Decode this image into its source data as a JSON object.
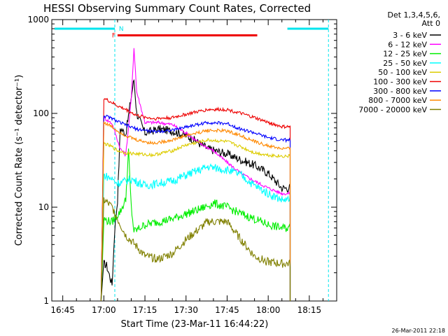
{
  "chart_data": {
    "type": "line",
    "title": "HESSI Observing Summary Count Rates, Corrected",
    "xlabel": "Start Time (23-Mar-11 16:44:22)",
    "ylabel": "Corrected Count Rate (s⁻¹ detector⁻¹)",
    "y_scale": "log",
    "xlim": [
      "16:41",
      "18:25"
    ],
    "ylim": [
      1,
      1000
    ],
    "x_ticks": [
      "16:45",
      "17:00",
      "17:15",
      "17:30",
      "17:45",
      "18:00",
      "18:15"
    ],
    "y_ticks": [
      "1",
      "10",
      "100",
      "1000"
    ],
    "grid": false,
    "legend_header": [
      "Det 1,3,4,5,6,",
      "Att 0"
    ],
    "legend_position": "right",
    "stamp": "26-Mar-2011 22:18",
    "flag_bars": [
      {
        "label": "",
        "color": "#00e5ee",
        "start": "16:42",
        "end": "17:04",
        "level": 800
      },
      {
        "label": "",
        "color": "#00e5ee",
        "start": "18:07",
        "end": "18:22",
        "level": 800
      },
      {
        "label": "F",
        "color": "#ee0000",
        "start": "17:05",
        "end": "17:56",
        "level": 680
      }
    ],
    "flag_labels": [
      {
        "text": "N",
        "color": "#00e5ee",
        "time": "17:05"
      }
    ],
    "flag_markers": [
      {
        "color": "#00e5ee",
        "time": "17:04"
      },
      {
        "color": "#00e5ee",
        "time": "18:22"
      }
    ],
    "data_start": "16:59",
    "data_end": "18:08",
    "series": [
      {
        "name": "3 - 6 keV",
        "color": "#000000",
        "points": [
          [
            "17:00",
            2.5
          ],
          [
            "17:01",
            2.4
          ],
          [
            "17:03",
            1.5
          ],
          [
            "17:04",
            6
          ],
          [
            "17:05",
            12
          ],
          [
            "17:06",
            70
          ],
          [
            "17:08",
            60
          ],
          [
            "17:10",
            150
          ],
          [
            "17:11",
            230
          ],
          [
            "17:12",
            100
          ],
          [
            "17:15",
            62
          ],
          [
            "17:20",
            68
          ],
          [
            "17:25",
            65
          ],
          [
            "17:30",
            58
          ],
          [
            "17:33",
            52
          ],
          [
            "17:38",
            42
          ],
          [
            "17:45",
            37
          ],
          [
            "17:50",
            32
          ],
          [
            "17:55",
            28
          ],
          [
            "18:00",
            23
          ],
          [
            "18:05",
            16
          ]
        ]
      },
      {
        "name": "6 - 12 keV",
        "color": "#ff00ff",
        "points": [
          [
            "17:00",
            90
          ],
          [
            "17:03",
            78
          ],
          [
            "17:06",
            42
          ],
          [
            "17:08",
            36
          ],
          [
            "17:10",
            140
          ],
          [
            "17:11",
            500
          ],
          [
            "17:12",
            170
          ],
          [
            "17:15",
            80
          ],
          [
            "17:20",
            80
          ],
          [
            "17:25",
            76
          ],
          [
            "17:30",
            62
          ],
          [
            "17:35",
            48
          ],
          [
            "17:40",
            40
          ],
          [
            "17:45",
            30
          ],
          [
            "17:50",
            23
          ],
          [
            "17:55",
            19
          ],
          [
            "18:00",
            16
          ],
          [
            "18:05",
            14
          ]
        ]
      },
      {
        "name": "12 - 25 keV",
        "color": "#00ee00",
        "points": [
          [
            "17:00",
            7.5
          ],
          [
            "17:01",
            7.2
          ],
          [
            "17:03",
            7
          ],
          [
            "17:06",
            9
          ],
          [
            "17:08",
            12
          ],
          [
            "17:09",
            40
          ],
          [
            "17:10",
            10
          ],
          [
            "17:11",
            5.5
          ],
          [
            "17:15",
            6.5
          ],
          [
            "17:20",
            7
          ],
          [
            "17:25",
            7.5
          ],
          [
            "17:30",
            8.5
          ],
          [
            "17:35",
            9.5
          ],
          [
            "17:40",
            11
          ],
          [
            "17:45",
            10
          ],
          [
            "17:50",
            8.5
          ],
          [
            "17:55",
            7.5
          ],
          [
            "18:00",
            6.5
          ],
          [
            "18:05",
            6
          ]
        ]
      },
      {
        "name": "25 - 50 keV",
        "color": "#00ffff",
        "points": [
          [
            "17:00",
            22
          ],
          [
            "17:03",
            20
          ],
          [
            "17:05",
            18
          ],
          [
            "17:08",
            19
          ],
          [
            "17:10",
            20
          ],
          [
            "17:15",
            17
          ],
          [
            "17:20",
            18
          ],
          [
            "17:25",
            19
          ],
          [
            "17:30",
            22
          ],
          [
            "17:38",
            27
          ],
          [
            "17:45",
            25
          ],
          [
            "17:50",
            22
          ],
          [
            "17:55",
            17
          ],
          [
            "18:00",
            14
          ],
          [
            "18:05",
            12
          ]
        ]
      },
      {
        "name": "50 - 100 keV",
        "color": "#ddcc00",
        "points": [
          [
            "17:00",
            48
          ],
          [
            "17:03",
            44
          ],
          [
            "17:05",
            40
          ],
          [
            "17:08",
            38
          ],
          [
            "17:12",
            37
          ],
          [
            "17:18",
            36
          ],
          [
            "17:25",
            40
          ],
          [
            "17:30",
            46
          ],
          [
            "17:38",
            52
          ],
          [
            "17:45",
            50
          ],
          [
            "17:50",
            44
          ],
          [
            "17:55",
            38
          ],
          [
            "18:00",
            36
          ],
          [
            "18:05",
            35
          ]
        ]
      },
      {
        "name": "100 - 300 keV",
        "color": "#ee0000",
        "points": [
          [
            "17:00",
            145
          ],
          [
            "17:03",
            130
          ],
          [
            "17:05",
            120
          ],
          [
            "17:08",
            110
          ],
          [
            "17:12",
            95
          ],
          [
            "17:18",
            88
          ],
          [
            "17:25",
            90
          ],
          [
            "17:30",
            98
          ],
          [
            "17:38",
            110
          ],
          [
            "17:45",
            110
          ],
          [
            "17:50",
            100
          ],
          [
            "17:55",
            90
          ],
          [
            "18:00",
            80
          ],
          [
            "18:05",
            72
          ]
        ]
      },
      {
        "name": "300 - 800 keV",
        "color": "#0000ff",
        "points": [
          [
            "17:00",
            95
          ],
          [
            "17:03",
            88
          ],
          [
            "17:05",
            82
          ],
          [
            "17:08",
            75
          ],
          [
            "17:12",
            68
          ],
          [
            "17:18",
            64
          ],
          [
            "17:25",
            66
          ],
          [
            "17:30",
            72
          ],
          [
            "17:38",
            80
          ],
          [
            "17:45",
            78
          ],
          [
            "17:50",
            68
          ],
          [
            "17:55",
            62
          ],
          [
            "18:00",
            55
          ],
          [
            "18:05",
            52
          ]
        ]
      },
      {
        "name": "800 - 7000 keV",
        "color": "#ff8800",
        "points": [
          [
            "17:00",
            80
          ],
          [
            "17:03",
            72
          ],
          [
            "17:05",
            65
          ],
          [
            "17:08",
            58
          ],
          [
            "17:12",
            52
          ],
          [
            "17:18",
            48
          ],
          [
            "17:25",
            52
          ],
          [
            "17:30",
            58
          ],
          [
            "17:38",
            66
          ],
          [
            "17:45",
            65
          ],
          [
            "17:50",
            58
          ],
          [
            "17:55",
            50
          ],
          [
            "18:00",
            45
          ],
          [
            "18:05",
            42
          ]
        ]
      },
      {
        "name": "7000 - 20000 keV",
        "color": "#808000",
        "points": [
          [
            "17:00",
            12
          ],
          [
            "17:03",
            10
          ],
          [
            "17:05",
            7.5
          ],
          [
            "17:08",
            5
          ],
          [
            "17:12",
            3.8
          ],
          [
            "17:15",
            3
          ],
          [
            "17:20",
            2.8
          ],
          [
            "17:25",
            3.2
          ],
          [
            "17:30",
            4.5
          ],
          [
            "17:38",
            7
          ],
          [
            "17:45",
            7
          ],
          [
            "17:50",
            4.5
          ],
          [
            "17:55",
            3
          ],
          [
            "18:00",
            2.6
          ],
          [
            "18:05",
            2.5
          ]
        ]
      }
    ]
  }
}
